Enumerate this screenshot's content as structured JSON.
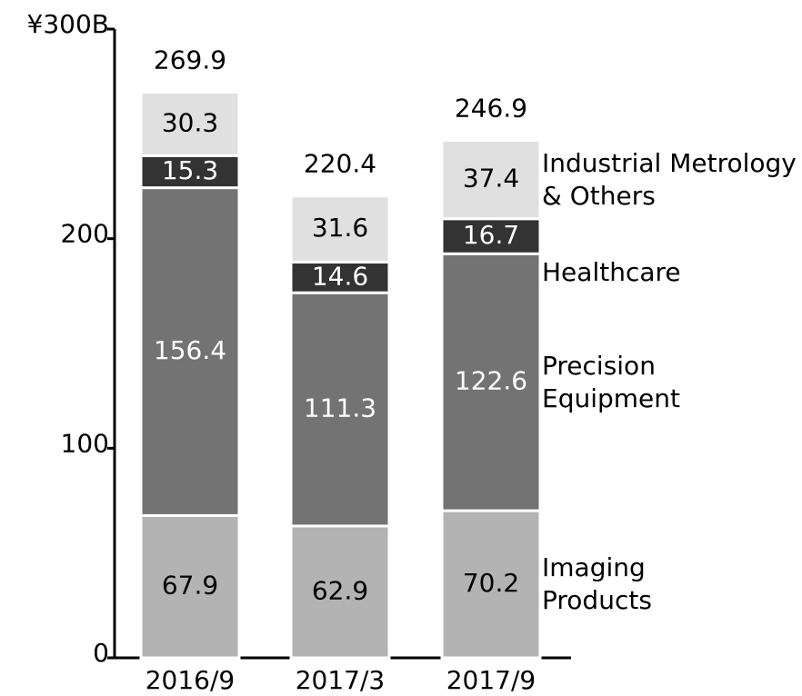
{
  "chart_data": {
    "type": "stacked_bar",
    "categories": [
      "2016/9",
      "2017/3",
      "2017/9"
    ],
    "series": [
      {
        "name": "Imaging Products",
        "color": "#b3b3b3",
        "label_color": "#000000",
        "values": [
          67.9,
          62.9,
          70.2
        ]
      },
      {
        "name": "Precision Equipment",
        "color": "#737373",
        "label_color": "#ffffff",
        "values": [
          156.4,
          111.3,
          122.6
        ]
      },
      {
        "name": "Healthcare",
        "color": "#333333",
        "label_color": "#ffffff",
        "values": [
          15.3,
          14.6,
          16.7
        ]
      },
      {
        "name": "Industrial Metrology & Others",
        "color": "#e0e0e0",
        "label_color": "#000000",
        "values": [
          30.3,
          31.6,
          37.4
        ]
      }
    ],
    "totals": [
      269.9,
      220.4,
      246.9
    ],
    "ylim": [
      0,
      300
    ],
    "yticks": [
      0,
      100,
      200,
      {
        "value": 300,
        "label": "¥300B"
      }
    ]
  }
}
